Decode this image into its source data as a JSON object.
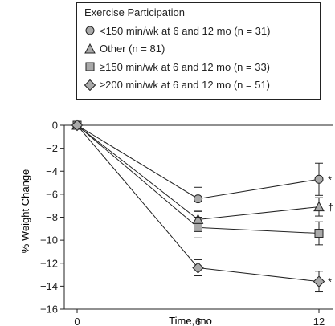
{
  "chart_data": {
    "type": "line",
    "xlabel": "Time, mo",
    "ylabel": "% Weight Change",
    "x": [
      0,
      6,
      12
    ],
    "x_ticks": [
      0,
      6,
      12
    ],
    "y_ticks": [
      0,
      -2,
      -4,
      -6,
      -8,
      -10,
      -12,
      -14,
      -16
    ],
    "ylim": [
      -16,
      0
    ],
    "xlim": [
      0,
      12
    ],
    "grid": false,
    "legend": {
      "title": "Exercise Participation",
      "placement": "top-right",
      "entries": [
        {
          "marker": "circle",
          "label": "<150 min/wk at 6 and 12 mo (n = 31)"
        },
        {
          "marker": "triangle",
          "label": "Other (n = 81)"
        },
        {
          "marker": "square",
          "label": "≥150 min/wk at 6 and 12 mo (n = 33)"
        },
        {
          "marker": "diamond",
          "label": "≥200 min/wk at 6 and 12 mo (n = 51)"
        }
      ]
    },
    "series": [
      {
        "marker": "circle",
        "values": [
          0,
          -6.4,
          -4.7
        ],
        "err": [
          0,
          1.0,
          1.4
        ],
        "annotation": "*"
      },
      {
        "marker": "triangle",
        "values": [
          0,
          -8.2,
          -7.1
        ],
        "err": [
          0,
          0.7,
          0.8
        ],
        "annotation": "†"
      },
      {
        "marker": "square",
        "values": [
          0,
          -8.9,
          -9.4
        ],
        "err": [
          0,
          0.9,
          1.0
        ],
        "annotation": ""
      },
      {
        "marker": "diamond",
        "values": [
          0,
          -12.4,
          -13.6
        ],
        "err": [
          0,
          0.7,
          0.9
        ],
        "annotation": "*"
      }
    ]
  }
}
